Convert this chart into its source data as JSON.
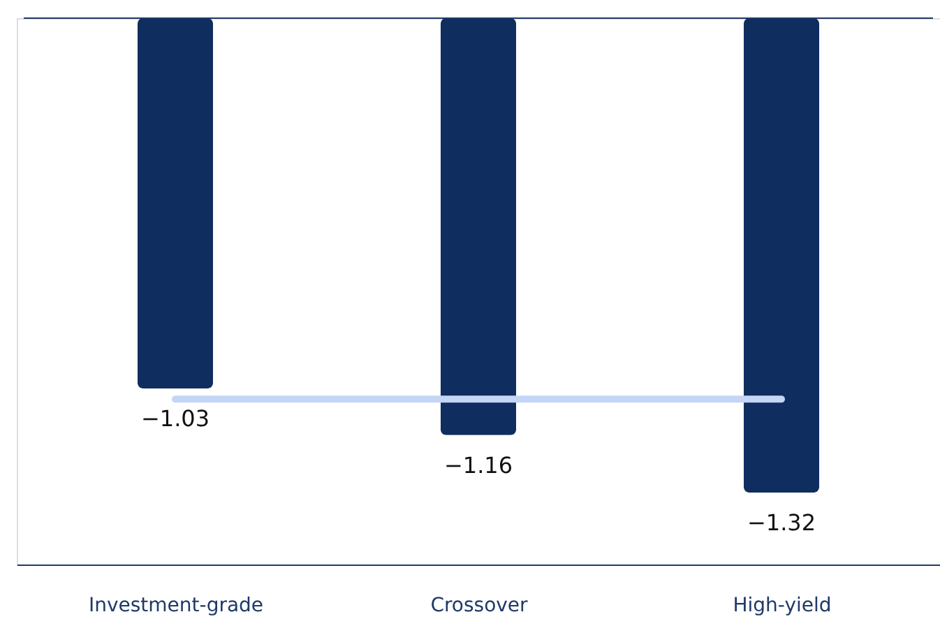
{
  "chart_data": {
    "type": "bar",
    "categories": [
      "Investment-grade",
      "Crossover",
      "High-yield"
    ],
    "values": [
      -1.03,
      -1.16,
      -1.32
    ],
    "color": "#0f2d5e",
    "data_labels": true,
    "ylim": [
      -1.52,
      0
    ],
    "tick_labels": "x",
    "ref_lines": [
      {
        "axis": "y",
        "value": -1.06,
        "color": "#c5d5f5"
      }
    ]
  }
}
